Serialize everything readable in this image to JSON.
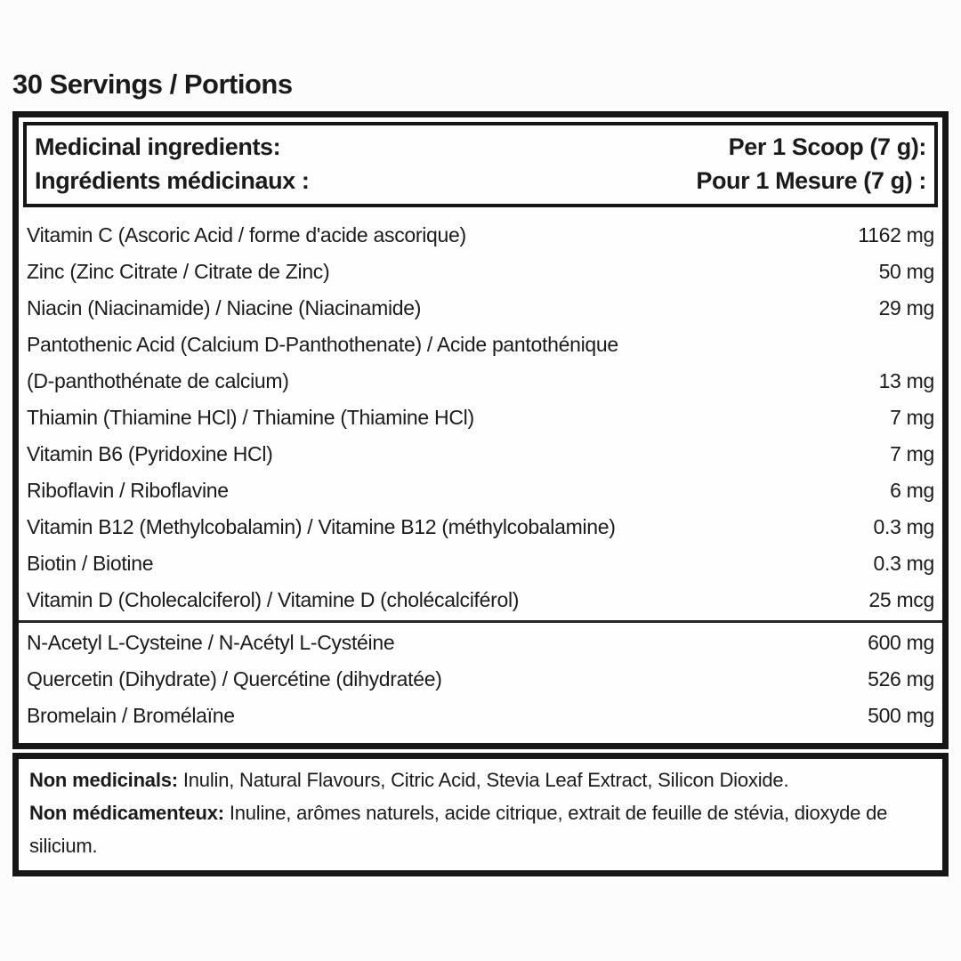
{
  "page": {
    "background_color": "#fcfcfc",
    "text_color": "#1b1b1b",
    "border_color": "#161616"
  },
  "title": "30 Servings / Portions",
  "panel": {
    "header": {
      "left_line1": "Medicinal ingredients:",
      "left_line2": "Ingrédients médicinaux :",
      "right_line1": "Per 1 Scoop (7 g):",
      "right_line2": "Pour 1 Mesure (7 g) :"
    },
    "sections": [
      {
        "rows": [
          {
            "label": "Vitamin C (Ascoric Acid / forme d'acide ascorique)",
            "value": "1162 mg"
          },
          {
            "label": "Zinc (Zinc Citrate / Citrate de Zinc)",
            "value": "50 mg"
          },
          {
            "label": "Niacin (Niacinamide) / Niacine (Niacinamide)",
            "value": "29 mg"
          },
          {
            "label": "Pantothenic Acid (Calcium D-Panthothenate) / Acide pantothénique",
            "value": ""
          },
          {
            "label": "(D-panthothénate de calcium)",
            "value": "13 mg"
          },
          {
            "label": "Thiamin (Thiamine HCl) / Thiamine (Thiamine HCl)",
            "value": "7 mg"
          },
          {
            "label": "Vitamin B6 (Pyridoxine HCl)",
            "value": "7 mg"
          },
          {
            "label": "Riboflavin / Riboflavine",
            "value": "6 mg"
          },
          {
            "label": "Vitamin B12 (Methylcobalamin) / Vitamine B12 (méthylcobalamine)",
            "value": "0.3 mg"
          },
          {
            "label": "Biotin / Biotine",
            "value": "0.3 mg"
          },
          {
            "label": "Vitamin D (Cholecalciferol) / Vitamine D (cholécalciférol)",
            "value": "25 mcg"
          }
        ]
      },
      {
        "rows": [
          {
            "label": "N-Acetyl L-Cysteine / N-Acétyl L-Cystéine",
            "value": "600 mg"
          },
          {
            "label": "Quercetin (Dihydrate) / Quercétine (dihydratée)",
            "value": "526 mg"
          },
          {
            "label": "Bromelain / Bromélaïne",
            "value": "500 mg"
          }
        ]
      }
    ]
  },
  "non_medicinals": {
    "en_label": "Non medicinals:",
    "en_text": " Inulin, Natural Flavours, Citric Acid, Stevia Leaf Extract, Silicon Dioxide.",
    "fr_label": "Non médicamenteux:",
    "fr_text": " Inuline, arômes naturels, acide citrique, extrait de feuille de stévia, dioxyde de silicium."
  }
}
